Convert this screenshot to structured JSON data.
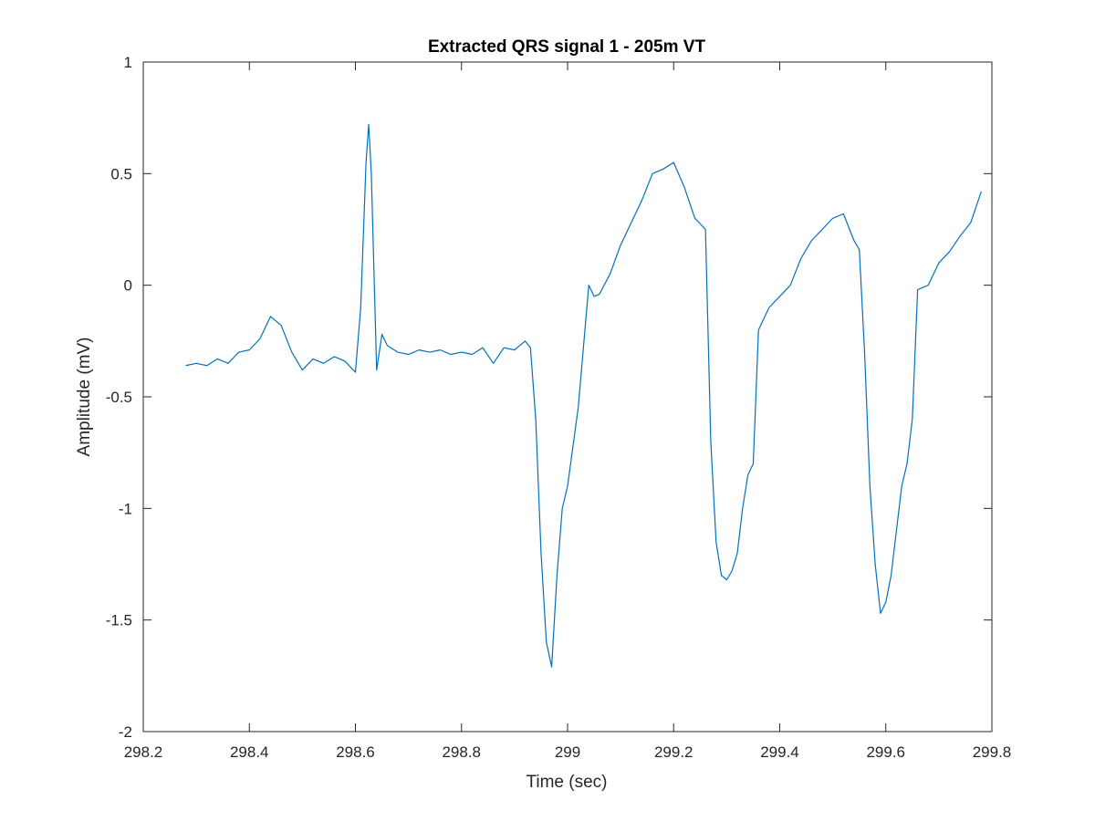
{
  "chart_data": {
    "type": "line",
    "title": "Extracted QRS signal 1 - 205m VT",
    "xlabel": "Time (sec)",
    "ylabel": "Amplitude (mV)",
    "xlim": [
      298.2,
      299.8
    ],
    "ylim": [
      -2,
      1
    ],
    "xticks": [
      298.2,
      298.4,
      298.6,
      298.8,
      299,
      299.2,
      299.4,
      299.6,
      299.8
    ],
    "xtick_labels": [
      "298.2",
      "298.4",
      "298.6",
      "298.8",
      "299",
      "299.2",
      "299.4",
      "299.6",
      "299.8"
    ],
    "yticks": [
      -2,
      -1.5,
      -1,
      -0.5,
      0,
      0.5,
      1
    ],
    "ytick_labels": [
      "-2",
      "-1.5",
      "-1",
      "-0.5",
      "0",
      "0.5",
      "1"
    ],
    "grid": false,
    "line_color": "#0072BD",
    "series": [
      {
        "x": [
          298.28,
          298.3,
          298.32,
          298.34,
          298.36,
          298.38,
          298.4,
          298.42,
          298.44,
          298.46,
          298.48,
          298.5,
          298.52,
          298.54,
          298.56,
          298.58,
          298.6,
          298.61,
          298.62,
          298.625,
          298.63,
          298.64,
          298.65,
          298.66,
          298.68,
          298.7,
          298.72,
          298.74,
          298.76,
          298.78,
          298.8,
          298.82,
          298.84,
          298.86,
          298.88,
          298.9,
          298.92,
          298.93,
          298.94,
          298.95,
          298.96,
          298.97,
          298.98,
          298.99,
          299.0,
          299.02,
          299.04,
          299.05,
          299.06,
          299.08,
          299.1,
          299.12,
          299.14,
          299.16,
          299.18,
          299.2,
          299.22,
          299.24,
          299.26,
          299.27,
          299.28,
          299.29,
          299.3,
          299.31,
          299.32,
          299.33,
          299.34,
          299.35,
          299.36,
          299.38,
          299.4,
          299.42,
          299.44,
          299.46,
          299.48,
          299.5,
          299.52,
          299.54,
          299.55,
          299.56,
          299.57,
          299.58,
          299.59,
          299.6,
          299.61,
          299.62,
          299.63,
          299.64,
          299.65,
          299.66,
          299.68,
          299.7,
          299.72,
          299.74,
          299.76,
          299.78
        ],
        "y": [
          -0.36,
          -0.35,
          -0.36,
          -0.33,
          -0.35,
          -0.3,
          -0.29,
          -0.24,
          -0.14,
          -0.18,
          -0.3,
          -0.38,
          -0.33,
          -0.35,
          -0.32,
          -0.34,
          -0.39,
          -0.1,
          0.55,
          0.72,
          0.5,
          -0.38,
          -0.22,
          -0.27,
          -0.3,
          -0.31,
          -0.29,
          -0.3,
          -0.29,
          -0.31,
          -0.3,
          -0.31,
          -0.28,
          -0.35,
          -0.28,
          -0.29,
          -0.25,
          -0.28,
          -0.6,
          -1.2,
          -1.6,
          -1.71,
          -1.3,
          -1.0,
          -0.9,
          -0.55,
          0.0,
          -0.05,
          -0.04,
          0.05,
          0.18,
          0.28,
          0.38,
          0.5,
          0.52,
          0.55,
          0.44,
          0.3,
          0.25,
          -0.7,
          -1.15,
          -1.3,
          -1.32,
          -1.28,
          -1.2,
          -1.0,
          -0.85,
          -0.8,
          -0.2,
          -0.1,
          -0.05,
          0.0,
          0.12,
          0.2,
          0.25,
          0.3,
          0.32,
          0.2,
          0.16,
          -0.3,
          -0.9,
          -1.25,
          -1.47,
          -1.42,
          -1.3,
          -1.1,
          -0.9,
          -0.8,
          -0.6,
          -0.02,
          0.0,
          0.1,
          0.15,
          0.22,
          0.28,
          0.42
        ]
      }
    ]
  }
}
